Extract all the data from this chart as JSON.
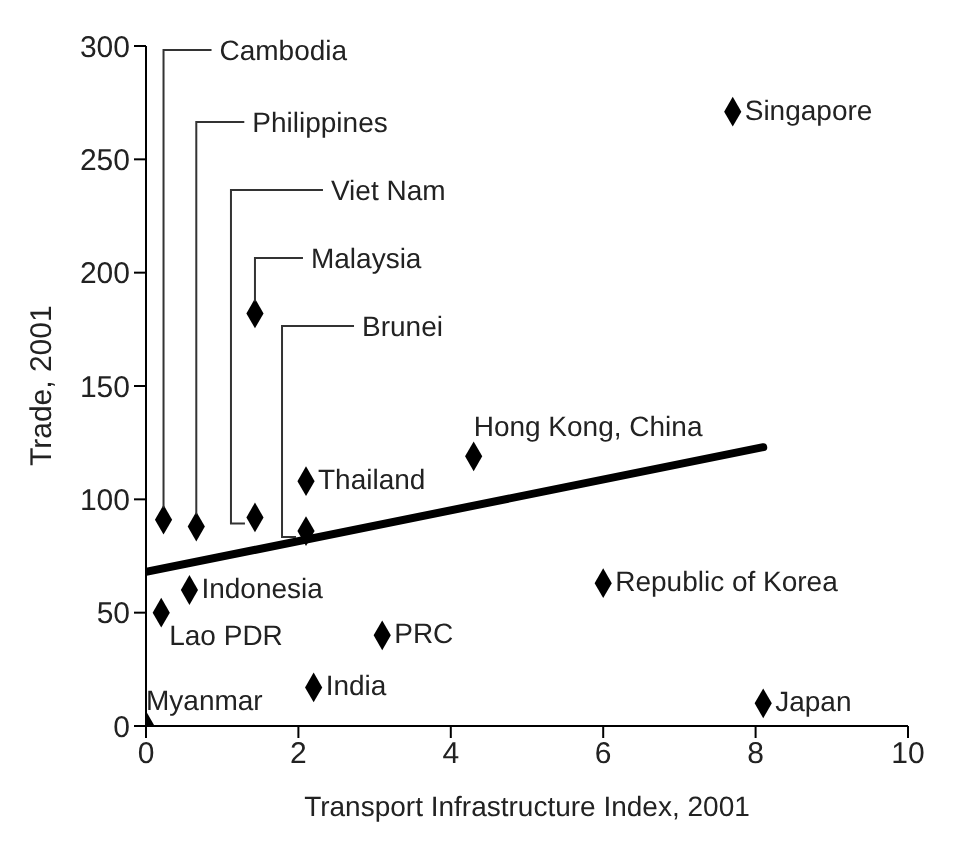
{
  "chart_data": {
    "type": "scatter",
    "xlabel": "Transport Infrastructure Index, 2001",
    "ylabel": "Trade, 2001",
    "xlim": [
      0,
      10
    ],
    "xticks": [
      0,
      2,
      4,
      6,
      8,
      10
    ],
    "ylim": [
      0,
      300
    ],
    "yticks": [
      0,
      50,
      100,
      150,
      200,
      250,
      300
    ],
    "grid": false,
    "marker": "diamond",
    "series": [
      {
        "color": "#000000",
        "x": [
          0.23,
          0.66,
          1.43,
          1.43,
          2.1,
          2.1,
          0.57,
          0.2,
          0,
          2.2,
          3.1,
          4.3,
          7.7,
          6.0,
          8.1
        ],
        "values": [
          91,
          88,
          92,
          182,
          86,
          108,
          60,
          50,
          0,
          17,
          40,
          119,
          271,
          63,
          10
        ]
      },
      {
        "type": "line",
        "color": "#000000",
        "marker": "none",
        "x": [
          0,
          8.1
        ],
        "values": [
          68,
          123
        ]
      }
    ],
    "annotations": [
      {
        "text": "Cambodia",
        "x": 0.23,
        "y": 91
      },
      {
        "text": "Philippines",
        "x": 0.66,
        "y": 88
      },
      {
        "text": "Viet Nam",
        "x": 1.43,
        "y": 92
      },
      {
        "text": "Malaysia",
        "x": 1.43,
        "y": 182
      },
      {
        "text": "Brunei",
        "x": 2.1,
        "y": 86
      },
      {
        "text": "Thailand",
        "x": 2.1,
        "y": 108
      },
      {
        "text": "Indonesia",
        "x": 0.57,
        "y": 60
      },
      {
        "text": "Lao PDR",
        "x": 0.2,
        "y": 50
      },
      {
        "text": "Myanmar",
        "x": 0,
        "y": 0
      },
      {
        "text": "India",
        "x": 2.2,
        "y": 17
      },
      {
        "text": "PRC",
        "x": 3.1,
        "y": 40
      },
      {
        "text": "Hong Kong, China",
        "x": 4.3,
        "y": 119
      },
      {
        "text": "Singapore",
        "x": 7.7,
        "y": 271
      },
      {
        "text": "Republic of Korea",
        "x": 6.0,
        "y": 63
      },
      {
        "text": "Japan",
        "x": 8.1,
        "y": 10
      }
    ]
  }
}
